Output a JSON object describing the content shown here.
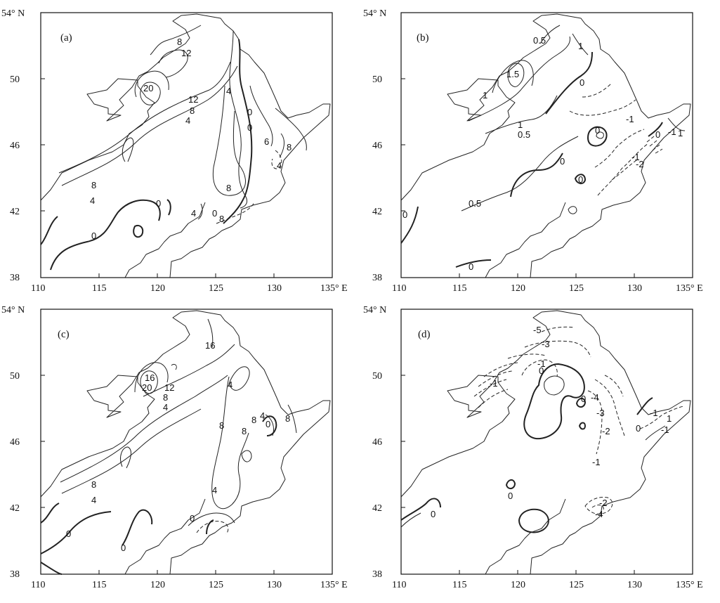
{
  "figure": {
    "panels": [
      {
        "id": "a",
        "label": "(a)",
        "lat_labels": [
          "54° N",
          "50",
          "46",
          "42",
          "38"
        ],
        "lon_labels": [
          "110",
          "115",
          "120",
          "125",
          "130",
          "135° E"
        ],
        "contour_labels": [
          "8",
          "12",
          "20",
          "12",
          "8",
          "4",
          "4",
          "0",
          "8",
          "8",
          "8",
          "4",
          "4",
          "4",
          "0",
          "0",
          "0",
          "8",
          "6",
          "0"
        ]
      },
      {
        "id": "b",
        "label": "(b)",
        "lat_labels": [
          "54° N",
          "50",
          "46",
          "42",
          "38"
        ],
        "lon_labels": [
          "110",
          "115",
          "120",
          "125",
          "130",
          "135° E"
        ],
        "contour_labels": [
          "0.5",
          "1",
          "1.5",
          "0",
          "1",
          "1",
          "0.5",
          "0",
          "0",
          "-1",
          "-1",
          "-2",
          "0",
          "-1",
          "0.5",
          "0",
          "0",
          "0",
          "1"
        ]
      },
      {
        "id": "c",
        "label": "(c)",
        "lat_labels": [
          "54° N",
          "50",
          "46",
          "42",
          "38"
        ],
        "lon_labels": [
          "110",
          "115",
          "120",
          "125",
          "130",
          "135° E"
        ],
        "contour_labels": [
          "16",
          "16",
          "20",
          "12",
          "8",
          "4",
          "4",
          "8",
          "8",
          "8",
          "4",
          "0",
          "8",
          "8",
          "4",
          "4",
          "0",
          "0",
          "0"
        ]
      },
      {
        "id": "d",
        "label": "(d)",
        "lat_labels": [
          "54° N",
          "50",
          "46",
          "42",
          "38"
        ],
        "lon_labels": [
          "110",
          "115",
          "120",
          "125",
          "130",
          "135° E"
        ],
        "contour_labels": [
          "-5",
          "-3",
          "-1",
          "0",
          "-1",
          "0",
          "-4",
          "-3",
          "-2",
          "-1",
          "-1",
          "0",
          "-2",
          "-4",
          "0",
          "0",
          "1",
          "-1"
        ]
      }
    ]
  }
}
